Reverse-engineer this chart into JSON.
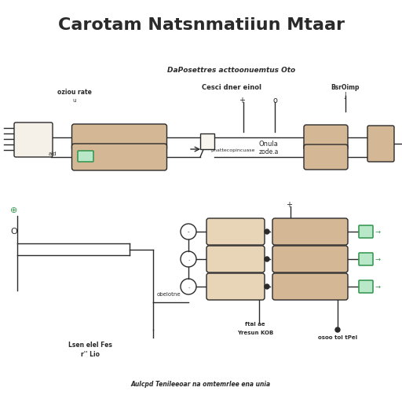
{
  "title": "Carotam Natsnmatiiun Mtaar",
  "bg_color": "#ffffff",
  "line_color": "#2a2a2a",
  "cap_fill": "#d4b896",
  "cap_fill_light": "#e8d5b8",
  "cap_fill2": "#f0ece6",
  "green_color": "#3a9955",
  "green_fill": "#b8e8c8",
  "text_color": "#2a2a2a",
  "subtitle_top": "DaPosettres acttoonuemtus Oto",
  "label_left": "oziou rate",
  "label_left2": "u",
  "label_center": "Cesci dner einol",
  "label_right": "BsrOimp",
  "label_right2": "J",
  "label_mid_left": "pnattecopincuase",
  "label_mid_right1": "Onula",
  "label_mid_right2": "zode.a",
  "label_bottom_text": "Aulcpd Tenileeoar na omtemrlee ena unia",
  "label_lower_left1": "Lsen elel Fes",
  "label_lower_left2": "r'' Lio",
  "label_lower_mid": "obelotne",
  "label_lower_right1": "ftal ae",
  "label_lower_right2": "Yresun KOB",
  "label_lower_right3": "osoo tol tPel",
  "label_ald": "ald"
}
